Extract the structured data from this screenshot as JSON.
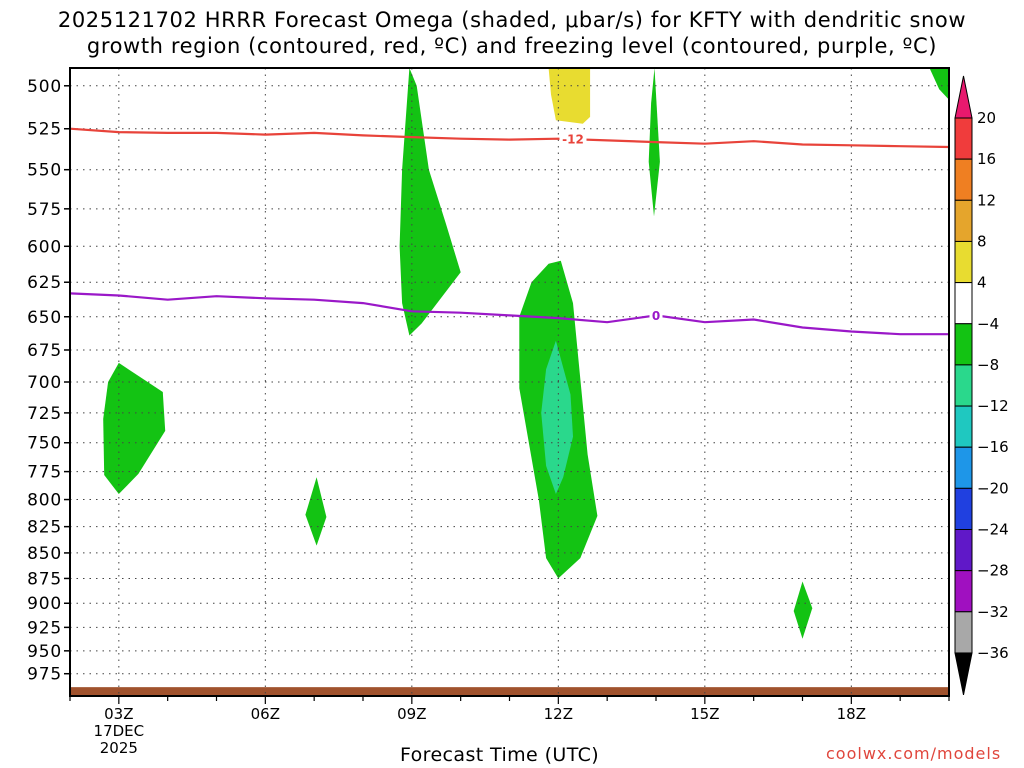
{
  "header": {
    "title_line1": "2025121702 HRRR Forecast Omega (shaded, μbar/s) for KFTY with dendritic snow",
    "title_line2": "growth region (contoured, red, ºC) and freezing level (contoured, purple, ºC)"
  },
  "footer": {
    "credit": "coolwx.com/models"
  },
  "chart_data": {
    "type": "contour",
    "xlabel": "Forecast Time (UTC)",
    "x_range_hours": [
      2,
      20
    ],
    "x_ticks": [
      {
        "hour": 3,
        "label": "03Z",
        "date_line1": "17DEC",
        "date_line2": "2025"
      },
      {
        "hour": 6,
        "label": "06Z"
      },
      {
        "hour": 9,
        "label": "09Z"
      },
      {
        "hour": 12,
        "label": "12Z"
      },
      {
        "hour": 15,
        "label": "15Z"
      },
      {
        "hour": 18,
        "label": "18Z"
      }
    ],
    "y_axis": "pressure (mb), log scale",
    "y_range": [
      1000,
      490
    ],
    "y_ticks": [
      500,
      525,
      550,
      575,
      600,
      625,
      650,
      675,
      700,
      725,
      750,
      775,
      800,
      825,
      850,
      875,
      900,
      925,
      950,
      975
    ],
    "grid": true,
    "colorbar": {
      "labels": [
        "20",
        "16",
        "12",
        "8",
        "4",
        "−4",
        "−8",
        "−12",
        "−16",
        "−20",
        "−24",
        "−28",
        "−32",
        "−36"
      ],
      "colors": [
        "#f03c3c",
        "#ef7f22",
        "#e5a52c",
        "#e8dc30",
        "#ffffff",
        "#13c313",
        "#2ad88c",
        "#1fc8c0",
        "#1e96e8",
        "#2040e0",
        "#6018c8",
        "#a010c0",
        "#a8a8a8"
      ],
      "top_color": "#e8196e",
      "bottom_color": "#000000"
    },
    "contour_lines": [
      {
        "label": "-12",
        "color": "#e8433a",
        "points": [
          [
            2,
            525
          ],
          [
            3,
            527
          ],
          [
            4,
            527.5
          ],
          [
            5,
            527.5
          ],
          [
            6,
            528.5
          ],
          [
            7,
            527.5
          ],
          [
            8,
            529
          ],
          [
            9,
            530
          ],
          [
            10,
            531
          ],
          [
            11,
            531.5
          ],
          [
            12,
            531
          ],
          [
            13,
            532
          ],
          [
            14,
            533
          ],
          [
            15,
            534
          ],
          [
            16,
            532.5
          ],
          [
            17,
            534.5
          ],
          [
            18,
            535
          ],
          [
            19,
            535.5
          ],
          [
            20,
            536
          ]
        ]
      },
      {
        "label": "0",
        "color": "#9a18c8",
        "points": [
          [
            2,
            633
          ],
          [
            3,
            634.5
          ],
          [
            4,
            637.5
          ],
          [
            5,
            635
          ],
          [
            6,
            636.5
          ],
          [
            7,
            637.5
          ],
          [
            8,
            640
          ],
          [
            9,
            646
          ],
          [
            10,
            647
          ],
          [
            11,
            649
          ],
          [
            12,
            651
          ],
          [
            13,
            654
          ],
          [
            14,
            649
          ],
          [
            15,
            654
          ],
          [
            16,
            652
          ],
          [
            17,
            658
          ],
          [
            18,
            661
          ],
          [
            19,
            663
          ],
          [
            20,
            663
          ]
        ]
      }
    ],
    "shaded_regions": [
      {
        "value_band": "-4 to -8",
        "color": "#13c313",
        "points": [
          [
            3.0,
            685
          ],
          [
            3.9,
            708
          ],
          [
            3.95,
            740
          ],
          [
            3.4,
            777
          ],
          [
            3.0,
            795
          ],
          [
            2.7,
            778
          ],
          [
            2.68,
            730
          ],
          [
            2.78,
            700
          ]
        ]
      },
      {
        "value_band": "-4 to -8",
        "color": "#13c313",
        "points": [
          [
            7.05,
            780
          ],
          [
            7.25,
            816
          ],
          [
            7.05,
            843
          ],
          [
            6.82,
            814
          ]
        ]
      },
      {
        "value_band": "-4 to -8",
        "color": "#13c313",
        "points": [
          [
            8.95,
            490
          ],
          [
            9.1,
            500
          ],
          [
            9.35,
            550
          ],
          [
            9.7,
            585
          ],
          [
            10.0,
            618
          ],
          [
            9.2,
            655
          ],
          [
            8.95,
            664
          ],
          [
            8.8,
            640
          ],
          [
            8.75,
            600
          ],
          [
            8.8,
            550
          ]
        ]
      },
      {
        "value_band": "-4 to -8",
        "color": "#13c313",
        "points": [
          [
            12.05,
            610
          ],
          [
            12.3,
            640
          ],
          [
            12.6,
            760
          ],
          [
            12.8,
            815
          ],
          [
            12.45,
            855
          ],
          [
            12.0,
            875
          ],
          [
            11.75,
            855
          ],
          [
            11.6,
            800
          ],
          [
            11.2,
            705
          ],
          [
            11.2,
            650
          ],
          [
            11.45,
            625
          ],
          [
            11.8,
            612
          ]
        ]
      },
      {
        "value_band": "-8 to -12",
        "color": "#2ad88c",
        "points": [
          [
            11.95,
            668
          ],
          [
            12.25,
            710
          ],
          [
            12.3,
            745
          ],
          [
            12.1,
            780
          ],
          [
            11.95,
            795
          ],
          [
            11.75,
            770
          ],
          [
            11.65,
            725
          ],
          [
            11.75,
            690
          ]
        ]
      },
      {
        "value_band": "-4 to -8",
        "color": "#13c313",
        "points": [
          [
            13.97,
            490
          ],
          [
            14.08,
            545
          ],
          [
            13.96,
            580
          ],
          [
            13.85,
            545
          ],
          [
            13.9,
            510
          ]
        ]
      },
      {
        "value_band": "-4 to -8",
        "color": "#13c313",
        "points": [
          [
            17.0,
            878
          ],
          [
            17.2,
            905
          ],
          [
            17.0,
            937
          ],
          [
            16.82,
            908
          ]
        ]
      },
      {
        "value_band": "-4 to -8",
        "color": "#13c313",
        "points": [
          [
            19.6,
            490
          ],
          [
            20.0,
            490
          ],
          [
            20.0,
            508
          ],
          [
            19.8,
            502
          ]
        ]
      },
      {
        "value_band": "4 to 8",
        "color": "#e8dc30",
        "points": [
          [
            11.8,
            490
          ],
          [
            12.65,
            490
          ],
          [
            12.65,
            518
          ],
          [
            12.5,
            522
          ],
          [
            11.95,
            520
          ],
          [
            11.85,
            505
          ]
        ]
      }
    ],
    "surface_band": {
      "color": "#a0522d",
      "pressure_top": 990,
      "pressure_bottom": 1000
    }
  }
}
